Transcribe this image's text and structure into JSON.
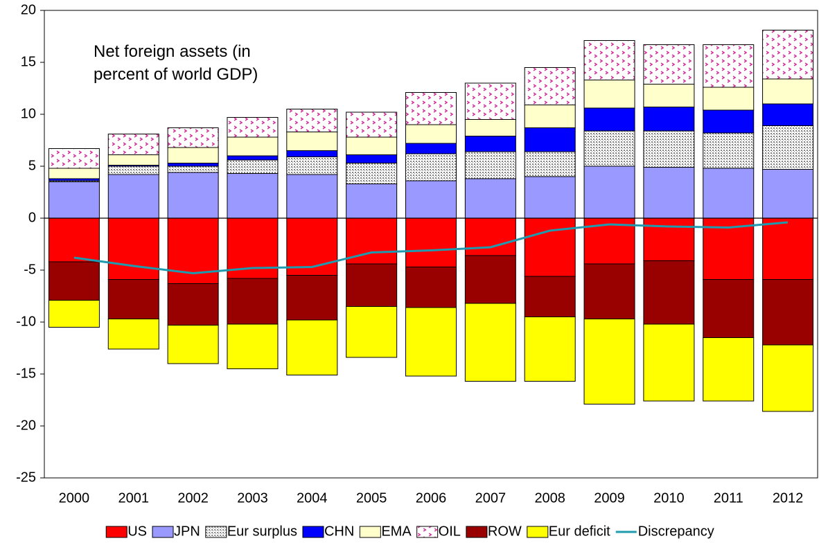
{
  "chart_data": {
    "type": "bar",
    "stacked": true,
    "title": "Net foreign assets (in percent of world GDP)",
    "categories": [
      "2000",
      "2001",
      "2002",
      "2003",
      "2004",
      "2005",
      "2006",
      "2007",
      "2008",
      "2009",
      "2010",
      "2011",
      "2012"
    ],
    "ylim": [
      -25,
      20
    ],
    "yticks": [
      -25,
      -20,
      -15,
      -10,
      -5,
      0,
      5,
      10,
      15,
      20
    ],
    "series": [
      {
        "name": "US",
        "color": "#ff0000",
        "values": [
          -4.2,
          -5.9,
          -6.3,
          -5.8,
          -5.5,
          -4.4,
          -4.7,
          -3.6,
          -5.6,
          -4.4,
          -4.1,
          -5.9,
          -5.9
        ]
      },
      {
        "name": "JPN",
        "color": "#9999ff",
        "values": [
          3.5,
          4.2,
          4.4,
          4.3,
          4.2,
          3.3,
          3.6,
          3.8,
          4.0,
          5.0,
          4.9,
          4.8,
          4.7
        ]
      },
      {
        "name": "Eur surplus",
        "color": "#808080",
        "pattern": "dots",
        "values": [
          0.1,
          0.8,
          0.6,
          1.3,
          1.7,
          2.0,
          2.6,
          2.6,
          2.4,
          3.4,
          3.5,
          3.4,
          4.2
        ]
      },
      {
        "name": "CHN",
        "color": "#0000ff",
        "values": [
          0.2,
          0.1,
          0.3,
          0.4,
          0.6,
          0.8,
          1.0,
          1.5,
          2.3,
          2.2,
          2.3,
          2.2,
          2.1
        ]
      },
      {
        "name": "EMA",
        "color": "#ffffcc",
        "values": [
          1.0,
          1.0,
          1.5,
          1.8,
          1.8,
          1.7,
          1.8,
          1.6,
          2.2,
          2.7,
          2.2,
          2.2,
          2.4
        ]
      },
      {
        "name": "OIL",
        "color": "#cc3399",
        "pattern": "chevrons",
        "values": [
          1.9,
          2.0,
          1.9,
          1.9,
          2.2,
          2.4,
          3.1,
          3.5,
          3.6,
          3.8,
          3.8,
          4.1,
          4.7
        ]
      },
      {
        "name": "ROW",
        "color": "#990000",
        "values": [
          -3.7,
          -3.8,
          -4.0,
          -4.4,
          -4.3,
          -4.1,
          -3.9,
          -4.6,
          -3.9,
          -5.3,
          -6.1,
          -5.6,
          -6.3
        ]
      },
      {
        "name": "Eur deficit",
        "color": "#ffff00",
        "values": [
          -2.6,
          -2.9,
          -3.7,
          -4.3,
          -5.3,
          -4.9,
          -6.6,
          -7.5,
          -6.2,
          -8.2,
          -7.4,
          -6.1,
          -6.4
        ]
      },
      {
        "name": "Discrepancy",
        "type": "line",
        "color": "#1f9bb0",
        "values": [
          -3.8,
          -4.6,
          -5.3,
          -4.8,
          -4.7,
          -3.3,
          -3.1,
          -2.8,
          -1.2,
          -0.6,
          -0.8,
          -0.9,
          -0.4
        ]
      }
    ]
  }
}
